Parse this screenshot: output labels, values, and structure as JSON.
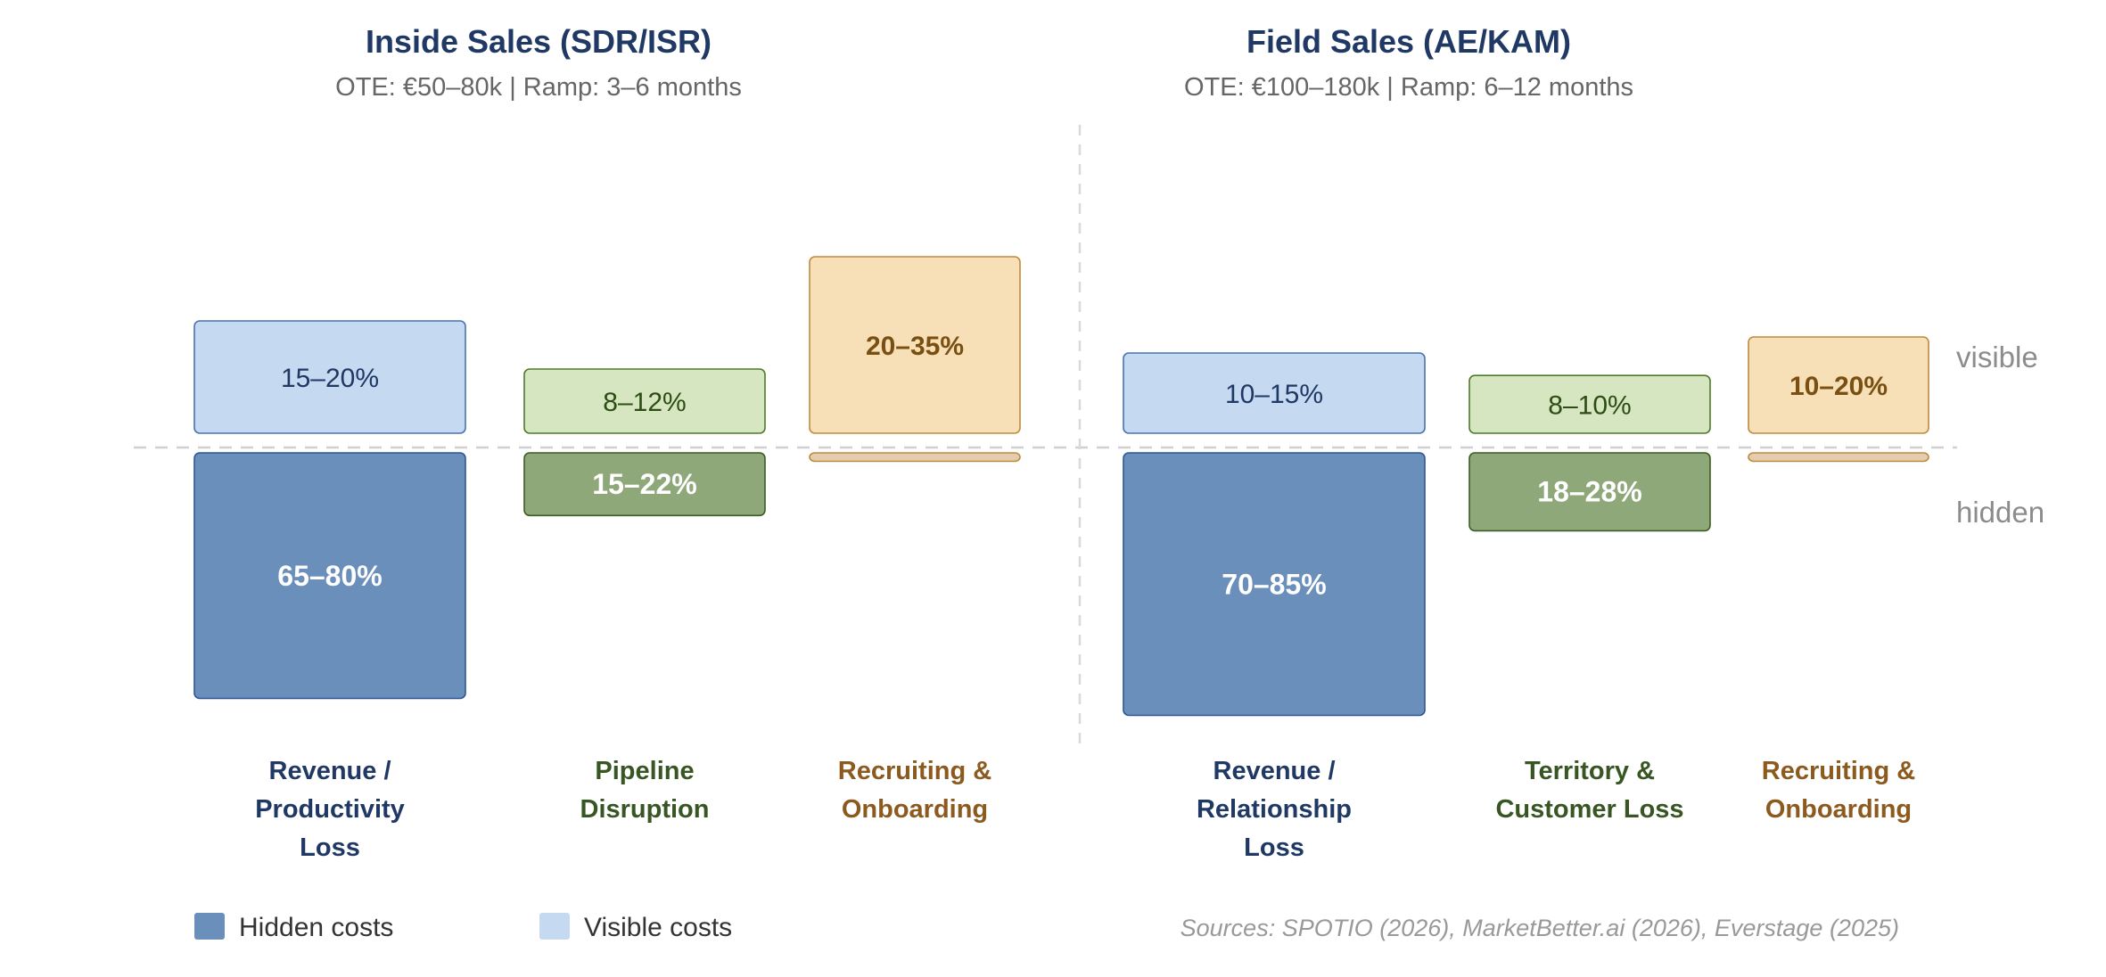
{
  "chart_data": {
    "type": "bar",
    "description_units": "percent of total turnover cost",
    "panels": [
      {
        "title": "Inside Sales (SDR/ISR)",
        "subtitle": "OTE: €50–80k | Ramp: 3–6 months",
        "categories": [
          {
            "label_lines": [
              "Revenue /",
              "Productivity",
              "Loss"
            ],
            "color_key": "blue",
            "visible": {
              "label": "15–20%",
              "low": 15,
              "high": 20,
              "bold": false
            },
            "hidden": {
              "label": "65–80%",
              "low": 65,
              "high": 80
            }
          },
          {
            "label_lines": [
              "Pipeline",
              "Disruption"
            ],
            "color_key": "green",
            "visible": {
              "label": "8–12%",
              "low": 8,
              "high": 12,
              "bold": false
            },
            "hidden": {
              "label": "15–22%",
              "low": 15,
              "high": 22
            }
          },
          {
            "label_lines": [
              "Recruiting &",
              "Onboarding"
            ],
            "color_key": "orange",
            "visible": {
              "label": "20–35%",
              "low": 20,
              "high": 35,
              "bold": true
            },
            "hidden": {
              "label": "",
              "low": 2,
              "high": 3
            }
          }
        ]
      },
      {
        "title": "Field Sales (AE/KAM)",
        "subtitle": "OTE: €100–180k | Ramp: 6–12 months",
        "categories": [
          {
            "label_lines": [
              "Revenue /",
              "Relationship",
              "Loss"
            ],
            "color_key": "blue",
            "visible": {
              "label": "10–15%",
              "low": 10,
              "high": 15,
              "bold": false
            },
            "hidden": {
              "label": "70–85%",
              "low": 70,
              "high": 85
            }
          },
          {
            "label_lines": [
              "Territory &",
              "Customer Loss"
            ],
            "color_key": "green",
            "visible": {
              "label": "8–10%",
              "low": 8,
              "high": 10,
              "bold": false
            },
            "hidden": {
              "label": "18–28%",
              "low": 18,
              "high": 28
            }
          },
          {
            "label_lines": [
              "Recruiting &",
              "Onboarding"
            ],
            "color_key": "orange",
            "visible": {
              "label": "10–20%",
              "low": 10,
              "high": 20,
              "bold": true
            },
            "hidden": {
              "label": "",
              "low": 2,
              "high": 3
            }
          }
        ]
      }
    ],
    "zone_labels": {
      "visible": "visible",
      "hidden": "hidden"
    },
    "legend": [
      {
        "label": "Hidden costs",
        "color": "#6a8fbb"
      },
      {
        "label": "Visible costs",
        "color": "#c5d9f1"
      }
    ],
    "source": "Sources: SPOTIO (2026), MarketBetter.ai (2026), Everstage (2025)"
  },
  "colors": {
    "blue": {
      "visible_fill": "#c5d9f1",
      "visible_stroke": "#4a72b0",
      "visible_text": "#1f3864",
      "hidden_fill": "#6a8fbb",
      "hidden_stroke": "#2f5597",
      "label": "#1f3864"
    },
    "green": {
      "visible_fill": "#d5e6c0",
      "visible_stroke": "#4f7a2a",
      "visible_text": "#2d4d14",
      "hidden_fill": "#8fa87a",
      "hidden_stroke": "#3d5c22",
      "label": "#375623"
    },
    "orange": {
      "visible_fill": "#f7dfb8",
      "visible_stroke": "#c08a3e",
      "visible_text": "#7a4f12",
      "hidden_fill": "#e2cdaf",
      "hidden_stroke": "#c08a3e",
      "label": "#8c5a1e"
    },
    "title": "#1f3864",
    "baseline": "#d0d0d0",
    "divider": "#d9d9d9"
  }
}
